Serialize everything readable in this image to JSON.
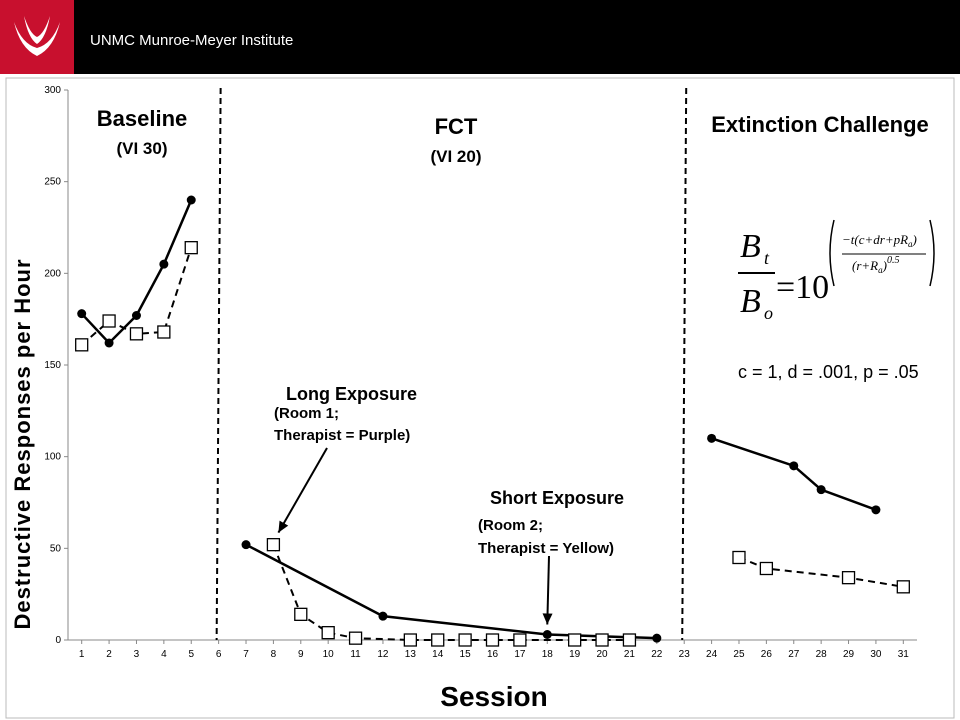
{
  "header": {
    "org_name": "UNMC Munroe-Meyer Institute",
    "brand_color": "#c8102e",
    "bar_color": "#000000"
  },
  "chart_data": {
    "type": "line",
    "title": "",
    "xlabel": "Session",
    "ylabel": "Destructive Responses per Hour",
    "xlim": [
      0.5,
      31.5
    ],
    "ylim": [
      0,
      300
    ],
    "x_ticks": [
      1,
      2,
      3,
      4,
      5,
      6,
      7,
      8,
      9,
      10,
      11,
      12,
      13,
      14,
      15,
      16,
      17,
      18,
      19,
      20,
      21,
      22,
      23,
      24,
      25,
      26,
      27,
      28,
      29,
      30,
      31
    ],
    "y_ticks": [
      0,
      50,
      100,
      150,
      200,
      250,
      300
    ],
    "grid": false,
    "legend": "none",
    "series": [
      {
        "marker": "filled-circle",
        "line_style": "solid",
        "segments": [
          [
            [
              1,
              178
            ],
            [
              2,
              162
            ],
            [
              3,
              177
            ],
            [
              4,
              205
            ],
            [
              5,
              240
            ]
          ],
          [
            [
              7,
              52
            ],
            [
              12,
              13
            ],
            [
              18,
              3
            ],
            [
              22,
              1
            ]
          ],
          [
            [
              24,
              110
            ],
            [
              27,
              95
            ],
            [
              28,
              82
            ],
            [
              30,
              71
            ]
          ]
        ]
      },
      {
        "marker": "open-square",
        "line_style": "dashed",
        "segments": [
          [
            [
              1,
              161
            ],
            [
              2,
              174
            ],
            [
              3,
              167
            ],
            [
              4,
              168
            ],
            [
              5,
              214
            ]
          ],
          [
            [
              8,
              52
            ],
            [
              9,
              14
            ],
            [
              10,
              4
            ],
            [
              11,
              1
            ],
            [
              13,
              0
            ],
            [
              14,
              0
            ],
            [
              15,
              0
            ],
            [
              16,
              0
            ],
            [
              17,
              0
            ],
            [
              19,
              0
            ],
            [
              20,
              0
            ],
            [
              21,
              0
            ]
          ],
          [
            [
              25,
              45
            ],
            [
              26,
              39
            ],
            [
              29,
              34
            ],
            [
              31,
              29
            ]
          ]
        ]
      }
    ],
    "phase_lines": [
      6,
      23
    ],
    "phase_labels": [
      {
        "title": "Baseline",
        "subtitle": "(VI 30)"
      },
      {
        "title": "FCT",
        "subtitle": "(VI 20)"
      },
      {
        "title": "Extinction Challenge",
        "subtitle": ""
      }
    ],
    "annotations": [
      {
        "title": "Long Exposure",
        "line1": "(Room 1;",
        "line2": "Therapist = Purple)",
        "points_to": [
          8,
          52
        ]
      },
      {
        "title": "Short Exposure",
        "line1": "(Room 2;",
        "line2": "Therapist  = Yellow)",
        "points_to": [
          18,
          3
        ]
      }
    ],
    "formula": {
      "lhs_numerator": "B",
      "lhs_numerator_sub": "t",
      "lhs_denominator": "B",
      "lhs_denominator_sub": "o",
      "equals_base": "=10",
      "exponent_numerator": "−t(c+dr+pR",
      "exponent_numerator_sub": "a",
      "exponent_numerator_end": ")",
      "exponent_denominator": "(r+R",
      "exponent_denominator_sub": "a",
      "exponent_denominator_end": ")",
      "exponent_power": "0.5",
      "params": "c = 1, d = .001, p = .05"
    }
  }
}
